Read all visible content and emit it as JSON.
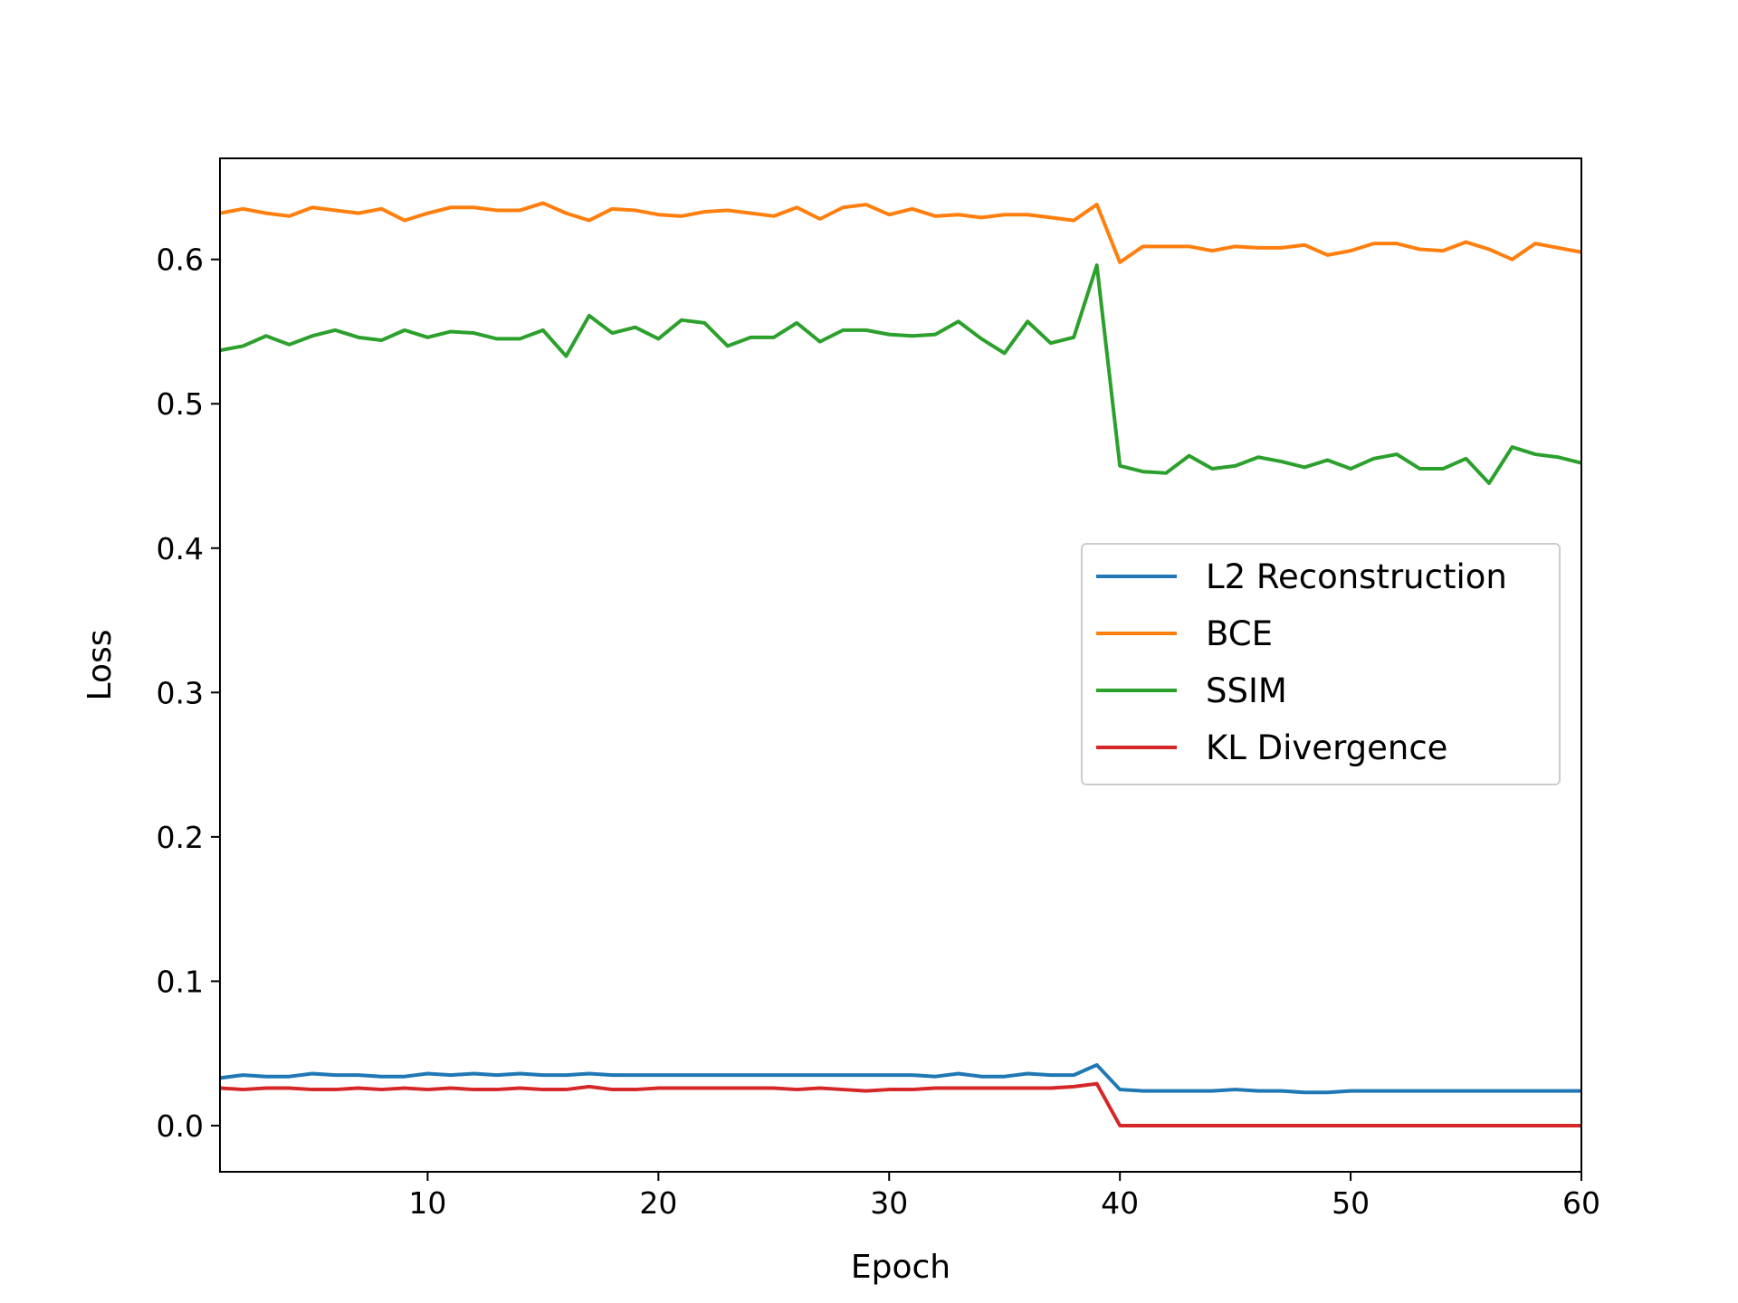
{
  "chart_data": {
    "type": "line",
    "title": "",
    "xlabel": "Epoch",
    "ylabel": "Loss",
    "xlim": [
      1,
      60
    ],
    "ylim": [
      -0.032,
      0.67
    ],
    "xticks": [
      10,
      20,
      30,
      40,
      50,
      60
    ],
    "yticks": [
      0.0,
      0.1,
      0.2,
      0.3,
      0.4,
      0.5,
      0.6
    ],
    "grid": false,
    "legend_position": "center-right",
    "x": [
      1,
      2,
      3,
      4,
      5,
      6,
      7,
      8,
      9,
      10,
      11,
      12,
      13,
      14,
      15,
      16,
      17,
      18,
      19,
      20,
      21,
      22,
      23,
      24,
      25,
      26,
      27,
      28,
      29,
      30,
      31,
      32,
      33,
      34,
      35,
      36,
      37,
      38,
      39,
      40,
      41,
      42,
      43,
      44,
      45,
      46,
      47,
      48,
      49,
      50,
      51,
      52,
      53,
      54,
      55,
      56,
      57,
      58,
      59,
      60
    ],
    "series": [
      {
        "name": "L2 Reconstruction",
        "color": "#1f77b4",
        "values": [
          0.033,
          0.035,
          0.034,
          0.034,
          0.036,
          0.035,
          0.035,
          0.034,
          0.034,
          0.036,
          0.035,
          0.036,
          0.035,
          0.036,
          0.035,
          0.035,
          0.036,
          0.035,
          0.035,
          0.035,
          0.035,
          0.035,
          0.035,
          0.035,
          0.035,
          0.035,
          0.035,
          0.035,
          0.035,
          0.035,
          0.035,
          0.034,
          0.036,
          0.034,
          0.034,
          0.036,
          0.035,
          0.035,
          0.042,
          0.025,
          0.024,
          0.024,
          0.024,
          0.024,
          0.025,
          0.024,
          0.024,
          0.023,
          0.023,
          0.024,
          0.024,
          0.024,
          0.024,
          0.024,
          0.024,
          0.024,
          0.024,
          0.024,
          0.024,
          0.024
        ]
      },
      {
        "name": "BCE",
        "color": "#ff7f0e",
        "values": [
          0.632,
          0.635,
          0.632,
          0.63,
          0.636,
          0.634,
          0.632,
          0.635,
          0.627,
          0.632,
          0.636,
          0.636,
          0.634,
          0.634,
          0.639,
          0.632,
          0.627,
          0.635,
          0.634,
          0.631,
          0.63,
          0.633,
          0.634,
          0.632,
          0.63,
          0.636,
          0.628,
          0.636,
          0.638,
          0.631,
          0.635,
          0.63,
          0.631,
          0.629,
          0.631,
          0.631,
          0.629,
          0.627,
          0.638,
          0.598,
          0.609,
          0.609,
          0.609,
          0.606,
          0.609,
          0.608,
          0.608,
          0.61,
          0.603,
          0.606,
          0.611,
          0.611,
          0.607,
          0.606,
          0.612,
          0.607,
          0.6,
          0.611,
          0.608,
          0.605
        ]
      },
      {
        "name": "SSIM",
        "color": "#2ca02c",
        "values": [
          0.537,
          0.54,
          0.547,
          0.541,
          0.547,
          0.551,
          0.546,
          0.544,
          0.551,
          0.546,
          0.55,
          0.549,
          0.545,
          0.545,
          0.551,
          0.533,
          0.561,
          0.549,
          0.553,
          0.545,
          0.558,
          0.556,
          0.54,
          0.546,
          0.546,
          0.556,
          0.543,
          0.551,
          0.551,
          0.548,
          0.547,
          0.548,
          0.557,
          0.545,
          0.535,
          0.557,
          0.542,
          0.546,
          0.596,
          0.457,
          0.453,
          0.452,
          0.464,
          0.455,
          0.457,
          0.463,
          0.46,
          0.456,
          0.461,
          0.455,
          0.462,
          0.465,
          0.455,
          0.455,
          0.462,
          0.445,
          0.47,
          0.465,
          0.463,
          0.459
        ]
      },
      {
        "name": "KL Divergence",
        "color": "#d62728",
        "values": [
          0.026,
          0.025,
          0.026,
          0.026,
          0.025,
          0.025,
          0.026,
          0.025,
          0.026,
          0.025,
          0.026,
          0.025,
          0.025,
          0.026,
          0.025,
          0.025,
          0.027,
          0.025,
          0.025,
          0.026,
          0.026,
          0.026,
          0.026,
          0.026,
          0.026,
          0.025,
          0.026,
          0.025,
          0.024,
          0.025,
          0.025,
          0.026,
          0.026,
          0.026,
          0.026,
          0.026,
          0.026,
          0.027,
          0.029,
          0.0,
          0.0,
          0.0,
          0.0,
          0.0,
          0.0,
          0.0,
          0.0,
          0.0,
          0.0,
          0.0,
          0.0,
          0.0,
          0.0,
          0.0,
          0.0,
          0.0,
          0.0,
          0.0,
          0.0,
          0.0
        ]
      }
    ]
  }
}
